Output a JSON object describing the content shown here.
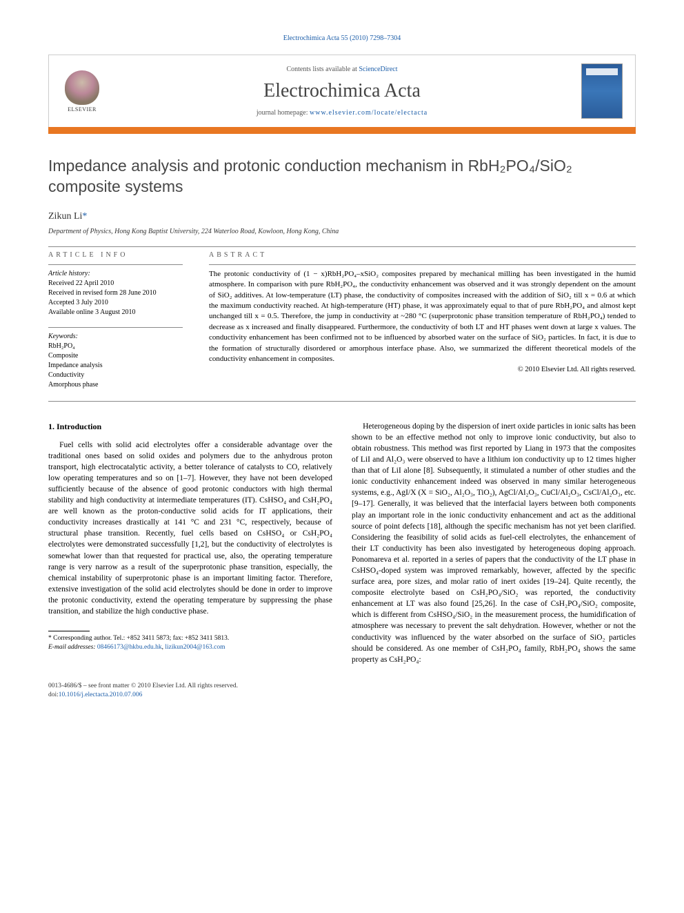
{
  "header": {
    "citation_prefix": "Electrochimica Acta 55 (2010) 7298–7304",
    "contents_prefix": "Contents lists available at ",
    "contents_link": "ScienceDirect",
    "journal": "Electrochimica Acta",
    "homepage_prefix": "journal homepage: ",
    "homepage_url": "www.elsevier.com/locate/electacta",
    "publisher": "ELSEVIER"
  },
  "title": "Impedance analysis and protonic conduction mechanism in RbH₂PO₄/SiO₂ composite systems",
  "author": {
    "name": "Zikun Li",
    "marker": "*"
  },
  "affiliation": "Department of Physics, Hong Kong Baptist University, 224 Waterloo Road, Kowloon, Hong Kong, China",
  "article_info": {
    "heading": "article info",
    "history_label": "Article history:",
    "history": [
      "Received 22 April 2010",
      "Received in revised form 28 June 2010",
      "Accepted 3 July 2010",
      "Available online 3 August 2010"
    ],
    "keywords_label": "Keywords:",
    "keywords": [
      "RbH₂PO₄",
      "Composite",
      "Impedance analysis",
      "Conductivity",
      "Amorphous phase"
    ]
  },
  "abstract": {
    "heading": "abstract",
    "text": "The protonic conductivity of (1 − x)RbH₂PO₄–xSiO₂ composites prepared by mechanical milling has been investigated in the humid atmosphere. In comparison with pure RbH₂PO₄, the conductivity enhancement was observed and it was strongly dependent on the amount of SiO₂ additives. At low-temperature (LT) phase, the conductivity of composites increased with the addition of SiO₂ till x = 0.6 at which the maximum conductivity reached. At high-temperature (HT) phase, it was approximately equal to that of pure RbH₂PO₄ and almost kept unchanged till x = 0.5. Therefore, the jump in conductivity at ~280 °C (superprotonic phase transition temperature of RbH₂PO₄) tended to decrease as x increased and finally disappeared. Furthermore, the conductivity of both LT and HT phases went down at large x values. The conductivity enhancement has been confirmed not to be influenced by absorbed water on the surface of SiO₂ particles. In fact, it is due to the formation of structurally disordered or amorphous interface phase. Also, we summarized the different theoretical models of the conductivity enhancement in composites.",
    "copyright": "© 2010 Elsevier Ltd. All rights reserved."
  },
  "body": {
    "section_heading": "1. Introduction",
    "col1_p1": "Fuel cells with solid acid electrolytes offer a considerable advantage over the traditional ones based on solid oxides and polymers due to the anhydrous proton transport, high electrocatalytic activity, a better tolerance of catalysts to CO, relatively low operating temperatures and so on [1–7]. However, they have not been developed sufficiently because of the absence of good protonic conductors with high thermal stability and high conductivity at intermediate temperatures (IT). CsHSO₄ and CsH₂PO₄ are well known as the proton-conductive solid acids for IT applications, their conductivity increases drastically at 141 °C and 231 °C, respectively, because of structural phase transition. Recently, fuel cells based on CsHSO₄ or CsH₂PO₄ electrolytes were demonstrated successfully [1,2], but the conductivity of electrolytes is somewhat lower than that requested for practical use, also, the operating temperature range is very narrow as a result of the superprotonic phase transition, especially, the chemical instability of superprotonic phase is an important limiting factor. Therefore, extensive investigation of the solid acid electrolytes should be done in order to improve the protonic conductivity, extend the operating temperature by suppressing the phase transition, and stabilize the high conductive phase.",
    "col2_p1": "Heterogeneous doping by the dispersion of inert oxide particles in ionic salts has been shown to be an effective method not only to improve ionic conductivity, but also to obtain robustness. This method was first reported by Liang in 1973 that the composites of LiI and Al₂O₃ were observed to have a lithium ion conductivity up to 12 times higher than that of LiI alone [8]. Subsequently, it stimulated a number of other studies and the ionic conductivity enhancement indeed was observed in many similar heterogeneous systems, e.g., AgI/X (X = SiO₂, Al₂O₃, TiO₂), AgCl/Al₂O₃, CuCl/Al₂O₃, CsCl/Al₂O₃, etc. [9–17]. Generally, it was believed that the interfacial layers between both components play an important role in the ionic conductivity enhancement and act as the additional source of point defects [18], although the specific mechanism has not yet been clarified. Considering the feasibility of solid acids as fuel-cell electrolytes, the enhancement of their LT conductivity has been also investigated by heterogeneous doping approach. Ponomareva et al. reported in a series of papers that the conductivity of the LT phase in CsHSO₄-doped system was improved remarkably, however, affected by the specific surface area, pore sizes, and molar ratio of inert oxides [19–24]. Quite recently, the composite electrolyte based on CsH₂PO₄/SiO₂ was reported, the conductivity enhancement at LT was also found [25,26]. In the case of CsH₂PO₄/SiO₂ composite, which is different from CsHSO₄/SiO₂ in the measurement process, the humidification of atmosphere was necessary to prevent the salt dehydration. However, whether or not the conductivity was influenced by the water absorbed on the surface of SiO₂ particles should be considered. As one member of CsH₂PO₄ family, RbH₂PO₄ shows the same property as CsH₂PO₄:"
  },
  "footnote": {
    "corr_label": "* Corresponding author. Tel.: +852 3411 5873; fax: +852 3411 5813.",
    "email_label": "E-mail addresses:",
    "email1": "08466173@hkbu.edu.hk",
    "email2": "lizikun2004@163.com"
  },
  "footer": {
    "issn": "0013-4686/$ – see front matter © 2010 Elsevier Ltd. All rights reserved.",
    "doi_label": "doi:",
    "doi": "10.1016/j.electacta.2010.07.006"
  }
}
